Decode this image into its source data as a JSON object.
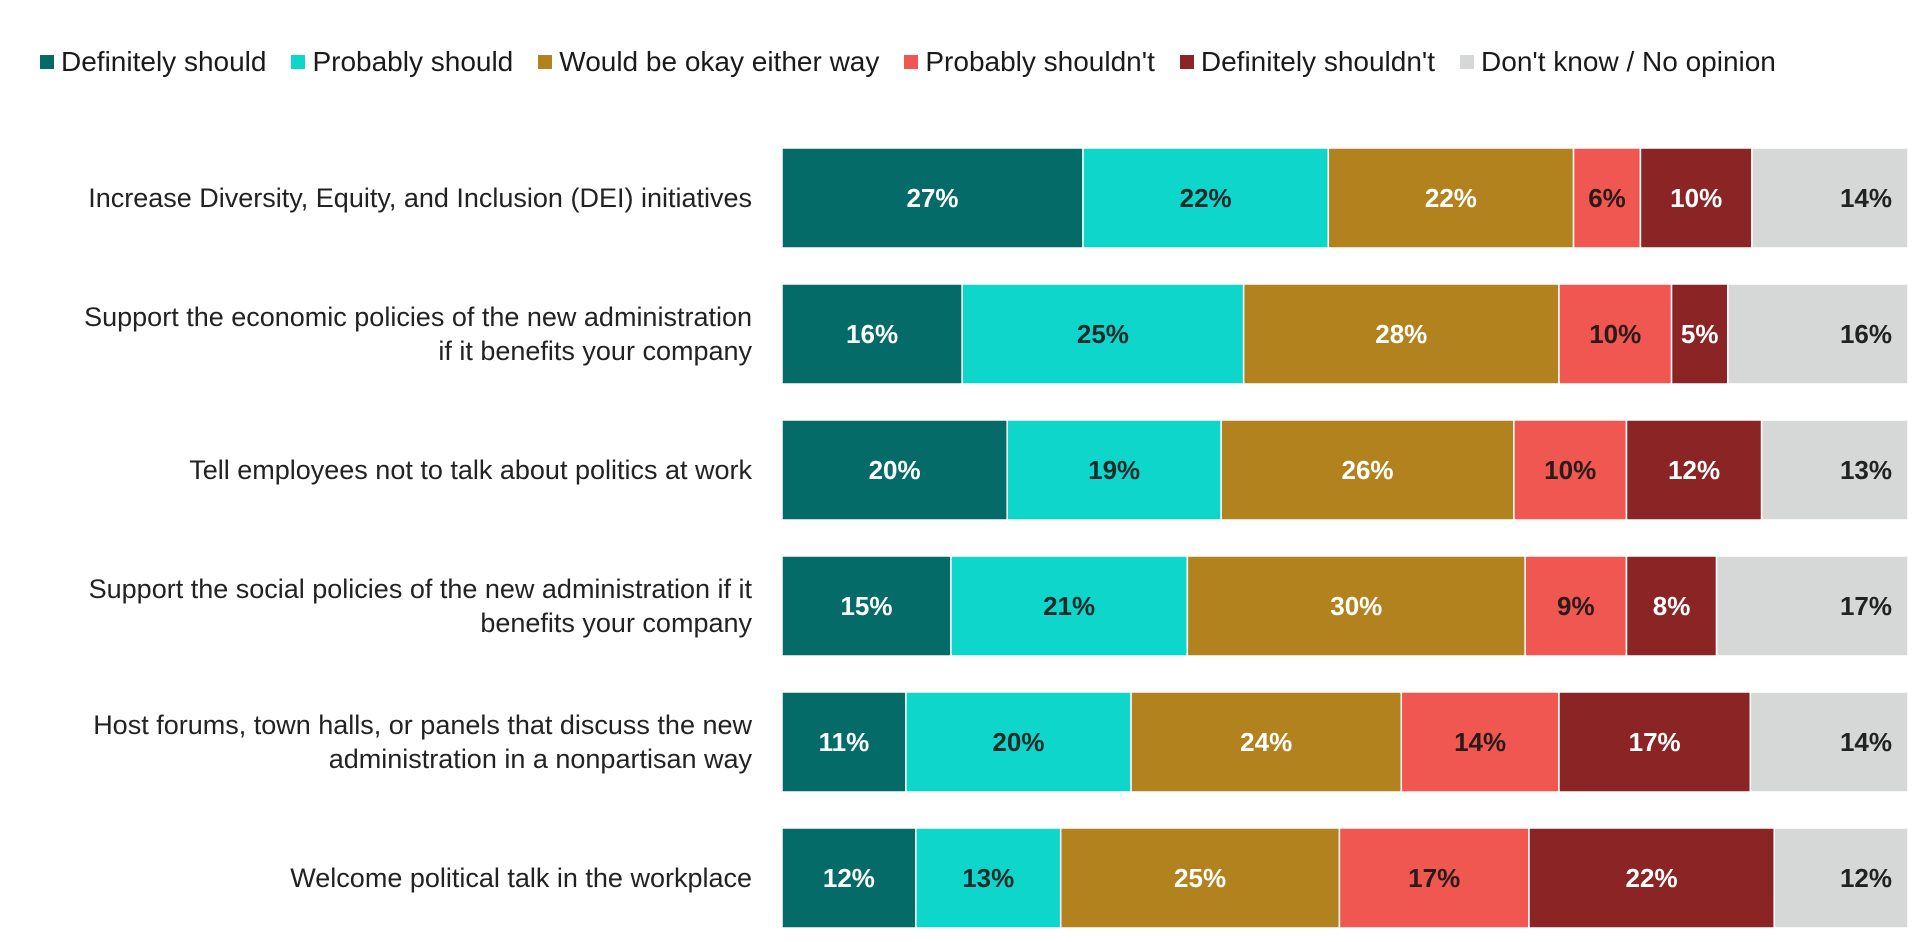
{
  "legend": [
    {
      "label": "Definitely should",
      "color": "#046b68"
    },
    {
      "label": "Probably should",
      "color": "#0fd6cb"
    },
    {
      "label": "Would be okay either way",
      "color": "#b2821f"
    },
    {
      "label": "Probably shouldn't",
      "color": "#f05750"
    },
    {
      "label": "Definitely shouldn't",
      "color": "#8b2424"
    },
    {
      "label": "Don't know / No opinion",
      "color": "#d6d8d8"
    }
  ],
  "chart_data": {
    "type": "bar",
    "orientation": "horizontal",
    "stacked": true,
    "legend_position": "top",
    "grid": false,
    "categories": [
      "Increase Diversity, Equity, and Inclusion (DEI) initiatives",
      "Support the economic policies of the new administration if it benefits your company",
      "Tell employees not to talk about politics at work",
      "Support the social policies of the new administration if it benefits your company",
      "Host forums, town halls, or panels that discuss the new administration in a nonpartisan way",
      "Welcome political talk in the workplace"
    ],
    "category_lines": [
      [
        "Increase Diversity, Equity, and Inclusion (DEI) initiatives"
      ],
      [
        "Support the economic policies of the new administration",
        "if it benefits your company"
      ],
      [
        "Tell employees not to talk about politics at work"
      ],
      [
        "Support the social policies of the new administration if it",
        "benefits your company"
      ],
      [
        "Host forums, town halls, or panels that discuss the new",
        "administration in a nonpartisan way"
      ],
      [
        "Welcome political talk in the workplace"
      ]
    ],
    "series": [
      {
        "name": "Definitely should",
        "color": "#046b68",
        "label_color": "#ffffff",
        "values": [
          27,
          16,
          20,
          15,
          11,
          12
        ]
      },
      {
        "name": "Probably should",
        "color": "#0fd6cb",
        "label_color": "#1a2a2a",
        "values": [
          22,
          25,
          19,
          21,
          20,
          13
        ]
      },
      {
        "name": "Would be okay either way",
        "color": "#b2821f",
        "label_color": "#ffffff",
        "values": [
          22,
          28,
          26,
          30,
          24,
          25
        ]
      },
      {
        "name": "Probably shouldn't",
        "color": "#f05750",
        "label_color": "#2a1a1a",
        "values": [
          6,
          10,
          10,
          9,
          14,
          17
        ]
      },
      {
        "name": "Definitely shouldn't",
        "color": "#8b2424",
        "label_color": "#ffffff",
        "values": [
          10,
          5,
          12,
          8,
          17,
          22
        ]
      },
      {
        "name": "Don't know / No opinion",
        "color": "#d6d8d8",
        "label_color": "#222222",
        "values": [
          14,
          16,
          13,
          17,
          14,
          12
        ]
      }
    ],
    "value_suffix": "%"
  }
}
